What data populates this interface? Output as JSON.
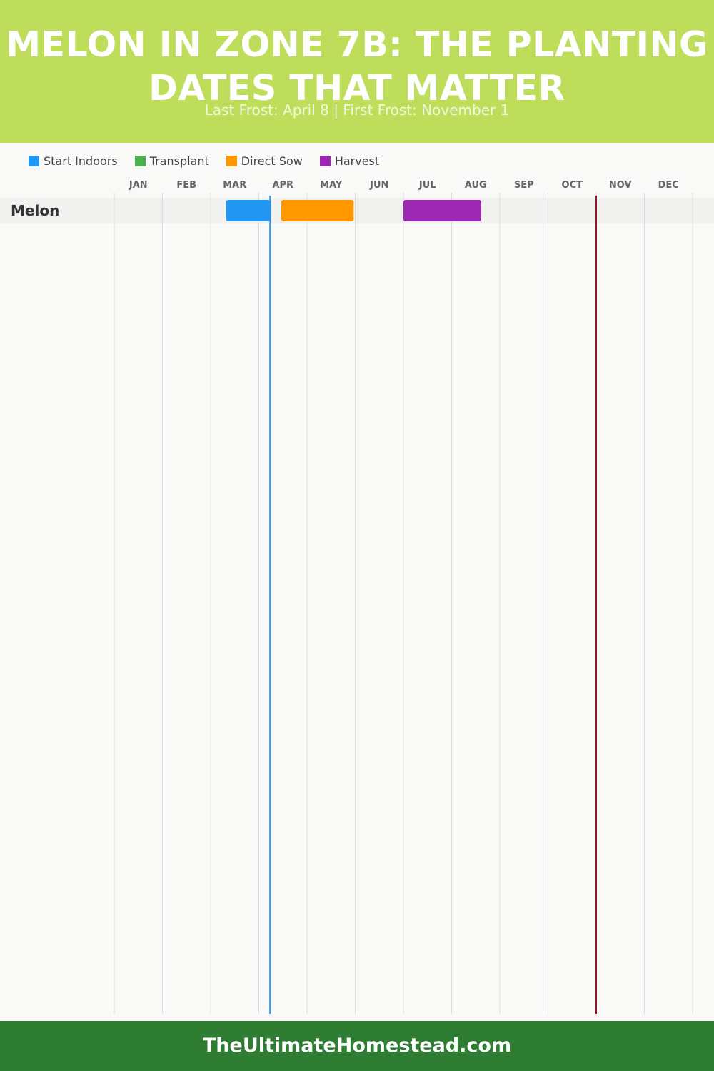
{
  "header": {
    "title": "MELON IN ZONE 7B: THE PLANTING DATES THAT MATTER",
    "subtitle": "Last Frost: April 8 | First Frost: November 1"
  },
  "legend": [
    {
      "label": "Start Indoors",
      "color": "#2196f3"
    },
    {
      "label": "Transplant",
      "color": "#4caf50"
    },
    {
      "label": "Direct Sow",
      "color": "#ff9800"
    },
    {
      "label": "Harvest",
      "color": "#9c27b0"
    }
  ],
  "chart_data": {
    "type": "gantt",
    "months": [
      "JAN",
      "FEB",
      "MAR",
      "APR",
      "MAY",
      "JUN",
      "JUL",
      "AUG",
      "SEP",
      "OCT",
      "NOV",
      "DEC"
    ],
    "rows": [
      {
        "crop": "Melon",
        "bars": [
          {
            "phase": "Start Indoors",
            "start": "Mar 11",
            "end": "Apr 8"
          },
          {
            "phase": "Direct Sow",
            "start": "Apr 15",
            "end": "May 31"
          },
          {
            "phase": "Harvest",
            "start": "Jul 1",
            "end": "Aug 20"
          }
        ]
      }
    ],
    "markers": [
      {
        "label": "Last Frost",
        "date": "Apr 8",
        "color": "#2196f3"
      },
      {
        "label": "First Frost",
        "date": "Nov 1",
        "color": "#8b1a1a"
      }
    ],
    "grid": true,
    "legend_position": "top-left"
  },
  "footer": {
    "site": "TheUltimateHomestead.com"
  }
}
